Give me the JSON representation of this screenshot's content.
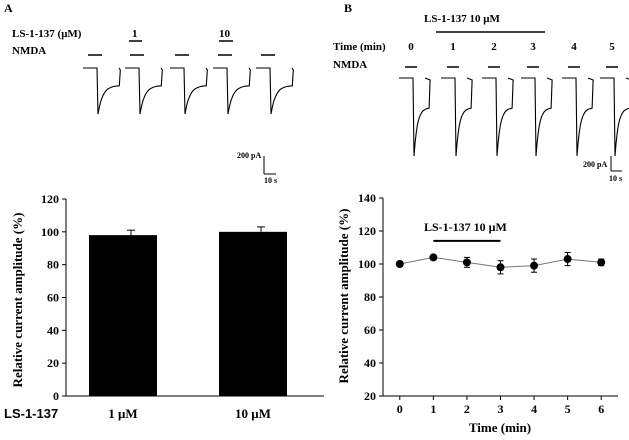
{
  "panel_a": {
    "letter": "A",
    "drug_label": "LS-1-137 (μM)",
    "nmda_label": "NMDA",
    "dose_labels": [
      "1",
      "10"
    ],
    "scale_current": "200 pA",
    "scale_time": "10 s"
  },
  "panel_b": {
    "letter": "B",
    "drug_bar_label": "LS-1-137 10 μM",
    "time_label": "Time (min)",
    "nmda_label": "NMDA",
    "time_points": [
      "0",
      "1",
      "2",
      "3",
      "4",
      "5"
    ],
    "scale_current": "200 pA",
    "scale_time": "10 s"
  },
  "chart_data": [
    {
      "type": "bar",
      "ylabel": "Relative current amplitude (%)",
      "xlabel": "",
      "category_prefix": "LS-1-137",
      "categories": [
        "1 μM",
        "10 μM"
      ],
      "values": [
        98,
        100
      ],
      "errors": [
        3,
        3
      ],
      "ylim": [
        0,
        120
      ],
      "yticks": [
        0,
        20,
        40,
        60,
        80,
        100,
        120
      ],
      "bar_color": "#000000"
    },
    {
      "type": "line",
      "ylabel": "Relative current amplitude (%)",
      "xlabel": "Time (min)",
      "x": [
        0,
        1,
        2,
        3,
        4,
        5,
        6
      ],
      "values": [
        100,
        104,
        101,
        98,
        99,
        103,
        101
      ],
      "errors": [
        1.5,
        1.5,
        3,
        4,
        4,
        4,
        2
      ],
      "xlim": [
        -0.5,
        6.5
      ],
      "ylim": [
        20,
        140
      ],
      "yticks": [
        20,
        40,
        60,
        80,
        100,
        120,
        140
      ],
      "xticks": [
        0,
        1,
        2,
        3,
        4,
        5,
        6
      ],
      "annotation": "LS-1-137 10 μM",
      "annotation_range": [
        1,
        3
      ]
    }
  ]
}
